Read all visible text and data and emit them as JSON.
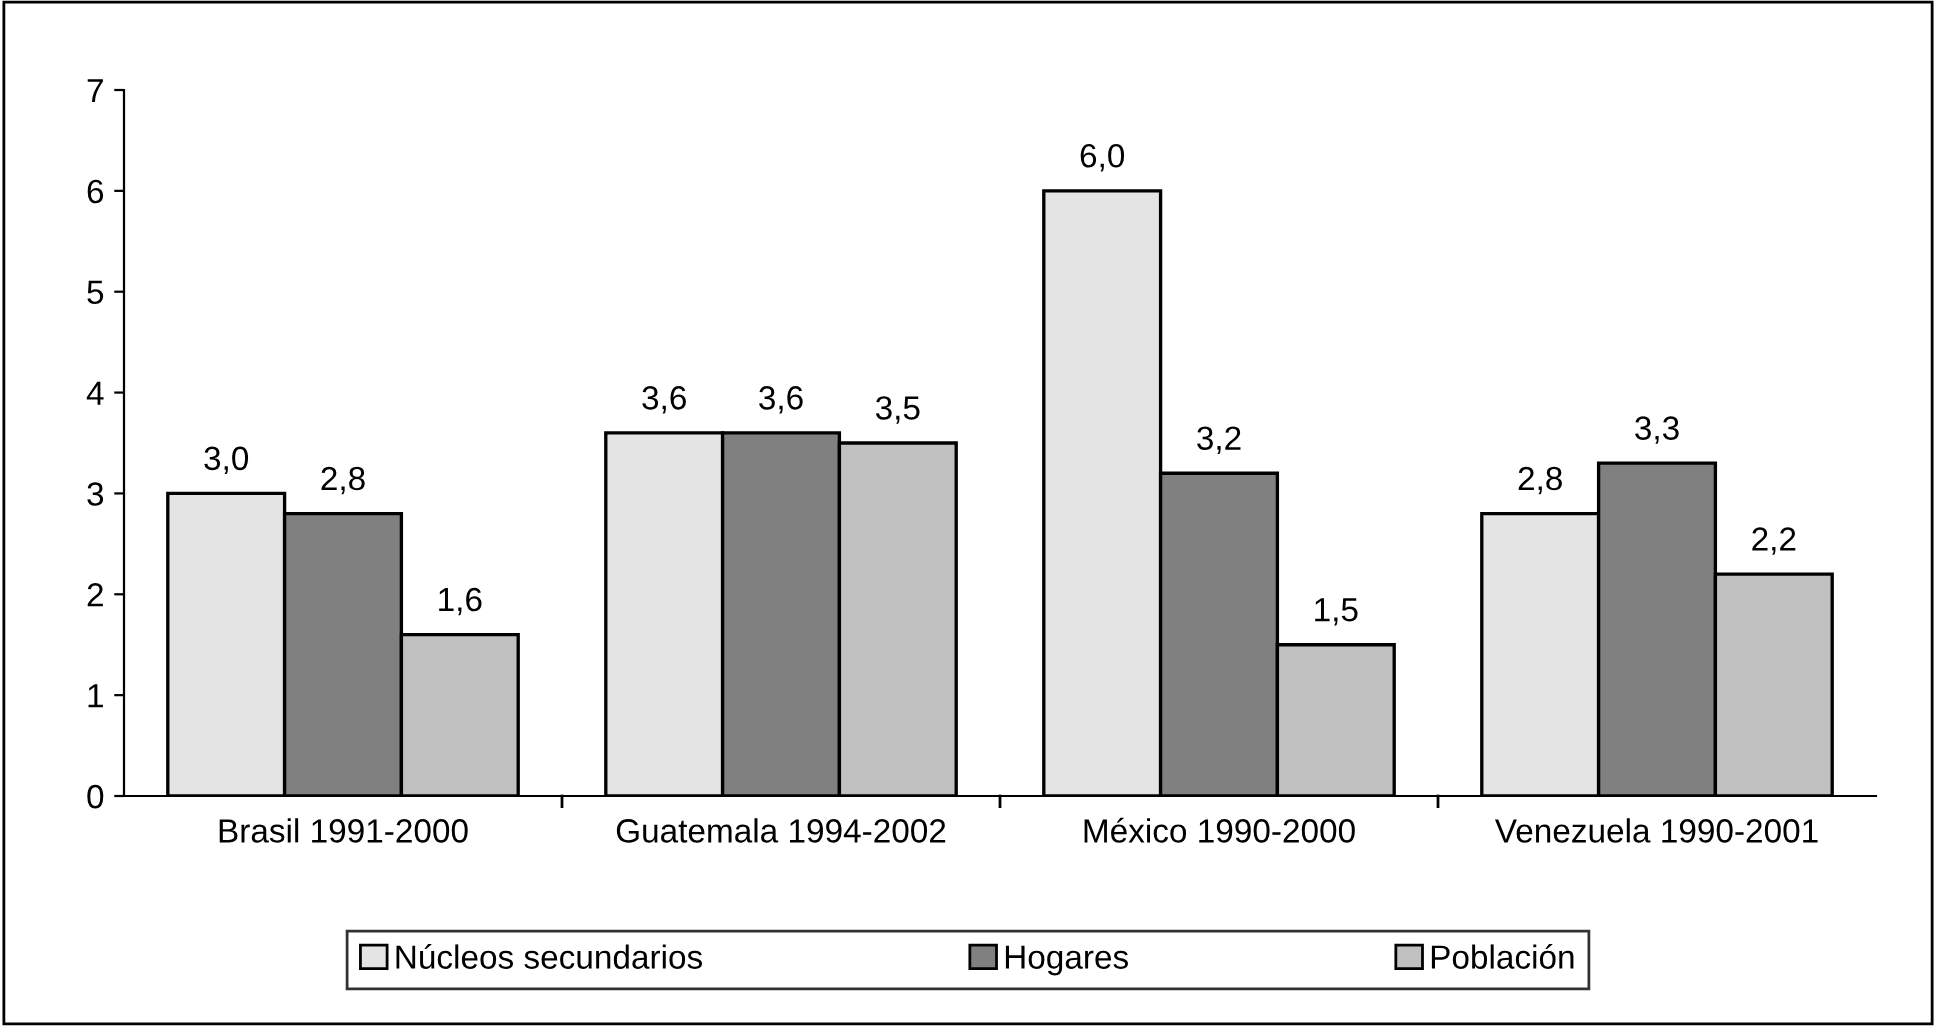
{
  "chart_data": {
    "type": "bar",
    "categories": [
      "Brasil 1991-2000",
      "Guatemala 1994-2002",
      "México 1990-2000",
      "Venezuela 1990-2001"
    ],
    "series": [
      {
        "name": "Núcleos secundarios",
        "color": "#e4e4e4",
        "values": [
          3.0,
          3.6,
          6.0,
          2.8
        ],
        "value_labels": [
          "3,0",
          "3,6",
          "6,0",
          "2,8"
        ]
      },
      {
        "name": "Hogares",
        "color": "#808080",
        "values": [
          2.8,
          3.6,
          3.2,
          3.3
        ],
        "value_labels": [
          "2,8",
          "3,6",
          "3,2",
          "3,3"
        ]
      },
      {
        "name": "Población",
        "color": "#c0c0c0",
        "values": [
          1.6,
          3.5,
          1.5,
          2.2
        ],
        "value_labels": [
          "1,6",
          "3,5",
          "1,5",
          "2,2"
        ]
      }
    ],
    "ylim": [
      0,
      7
    ],
    "yticks": [
      0,
      1,
      2,
      3,
      4,
      5,
      6,
      7
    ],
    "grid": false,
    "legend": "bottom"
  }
}
